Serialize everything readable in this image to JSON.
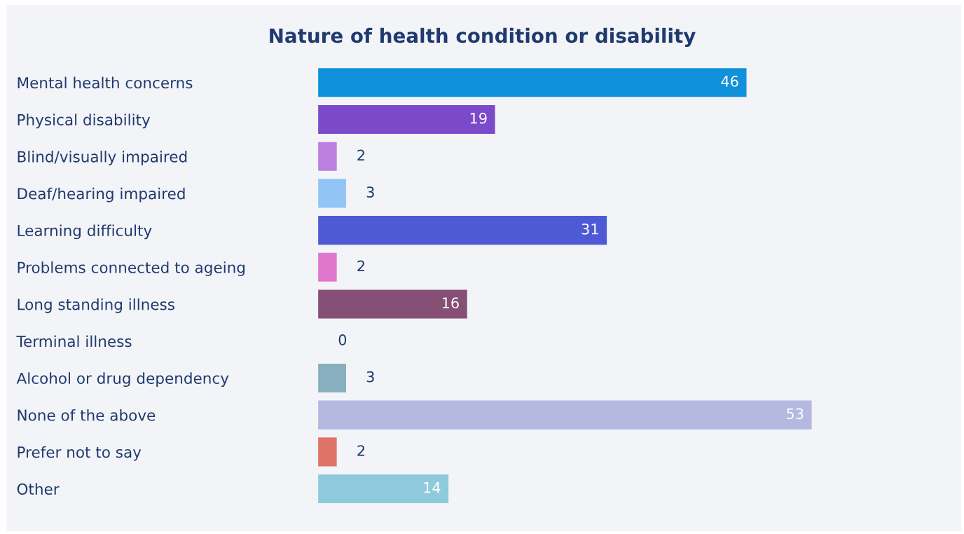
{
  "chart_data": {
    "type": "bar",
    "orientation": "horizontal",
    "title": "Nature of health condition or disability",
    "categories": [
      "Mental health concerns",
      "Physical disability",
      "Blind/visually impaired",
      "Deaf/hearing impaired",
      "Learning difficulty",
      "Problems connected to ageing",
      "Long standing illness",
      "Terminal illness",
      "Alcohol or drug dependency",
      "None of the above",
      "Prefer not to say",
      "Other"
    ],
    "values": [
      46,
      19,
      2,
      3,
      31,
      2,
      16,
      0,
      3,
      53,
      2,
      14
    ],
    "colors": [
      "#0f91dc",
      "#7a4ac8",
      "#bb7fe0",
      "#92c5f5",
      "#4e5ad4",
      "#e077cc",
      "#864f75",
      "#cccccc",
      "#87afbe",
      "#b5b8df",
      "#e07368",
      "#8ecadb"
    ],
    "data_labels": true,
    "grid": false,
    "legend": false,
    "tick_labels": "y"
  }
}
